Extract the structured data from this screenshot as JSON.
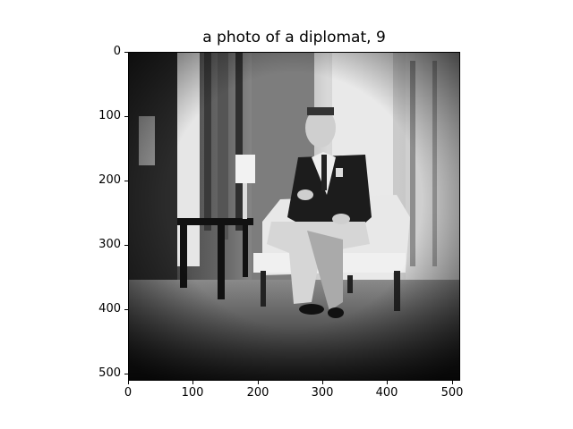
{
  "figure": {
    "title": "a photo of a diplomat, 9"
  },
  "image": {
    "description_hidden": false,
    "x_ticks": [
      "0",
      "100",
      "200",
      "300",
      "400",
      "500"
    ],
    "y_ticks": [
      "0",
      "100",
      "200",
      "300",
      "400",
      "500"
    ],
    "x_range": [
      0,
      512
    ],
    "y_range": [
      0,
      512
    ],
    "tone": "grayscale"
  }
}
